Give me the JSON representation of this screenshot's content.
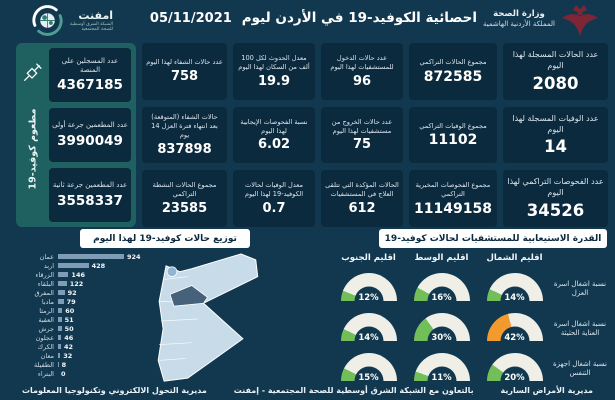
{
  "colors": {
    "background": "#12384F",
    "card": "#0C2A3D",
    "panel_teal": "#1F6061",
    "bar": "#7E9CB5",
    "gauge_green": "#72BF5A",
    "gauge_orange": "#F39A2E",
    "gauge_track": "#EFEFE8",
    "map_light": "#C7DBE9",
    "map_dark": "#45627A",
    "crest_maroon": "#7E2635"
  },
  "header": {
    "title": "احصائية الكوفيد-19 في الأردن ليوم",
    "date": "05/11/2021",
    "ministry_line1": "وزارة الصحة",
    "ministry_line2": "المملكة الأردنية الهاشمية",
    "logo_name": "امفنت",
    "logo_sub1": "الشبكة الشرق أوسطية",
    "logo_sub2": "للصحة المجتمعية"
  },
  "vaccine_panel": {
    "side_label": "مطعوم كوفيد-19",
    "cards": [
      {
        "label": "عدد المسجلين على المنصة",
        "value": "4367185"
      },
      {
        "label": "عدد المطعمين جرعة أولى",
        "value": "3990049"
      },
      {
        "label": "عدد المطعمين جرعة ثانية",
        "value": "3558337"
      }
    ]
  },
  "stat_columns": [
    {
      "id": "today",
      "size": "lg",
      "width": 105,
      "cards": [
        {
          "label": "عدد الحالات المسجلة لهذا اليوم",
          "value": "2080"
        },
        {
          "label": "عدد الوفيات المسجلة لهذا اليوم",
          "value": "14"
        },
        {
          "label": "عدد الفحوصات التراكمي لهذا اليوم",
          "value": "34526"
        }
      ]
    },
    {
      "id": "cumulative",
      "size": "md",
      "width": 88,
      "cards": [
        {
          "label": "مجموع الحالات التراكمي",
          "value": "872585"
        },
        {
          "label": "مجموع الوفيات التراكمي",
          "value": "11102"
        },
        {
          "label": "مجموع الفحوصات المخبرية التراكمي",
          "value": "11149158"
        }
      ]
    },
    {
      "id": "hospital",
      "size": "sm",
      "width": 82,
      "cards": [
        {
          "label": "عدد حالات الدخول للمستشفيات لهذا اليوم",
          "value": "96"
        },
        {
          "label": "عدد حالات الخروج من مستشفيات لهذا اليوم",
          "value": "75"
        },
        {
          "label": "الحالات المؤكدة التي تتلقى العلاج في المستشفيات",
          "value": "612"
        }
      ]
    },
    {
      "id": "rates",
      "size": "sm",
      "width": 82,
      "cards": [
        {
          "label": "معدل الحدوث لكل 100 ألف من السكان لهذا اليوم",
          "value": "19.9"
        },
        {
          "label": "نسبة الفحوصات الإيجابية لهذا اليوم",
          "value": "6.02"
        },
        {
          "label": "معدل الوفيات لحالات الكوفيد-19 لهذا اليوم",
          "value": "0.7"
        }
      ]
    },
    {
      "id": "recovery",
      "size": "sm",
      "width": 85,
      "cards": [
        {
          "label": "عدد حالات الشفاء لهذا اليوم",
          "value": "758"
        },
        {
          "label": "حالات الشفاء (المتوقعة) بعد انتهاء فترة العزل 14 يوم",
          "value": "837898"
        },
        {
          "label": "مجموع الحالات النشطة التراكمي",
          "value": "23585"
        }
      ]
    }
  ],
  "chart_data": [
    {
      "type": "bar",
      "orientation": "horizontal",
      "title": "توزيع حالات كوفيد-19 لهذا اليوم",
      "categories": [
        "عمان",
        "اربد",
        "الزرقاء",
        "البلقاء",
        "المفرق",
        "مادبا",
        "الرمثا",
        "العقبة",
        "جرش",
        "عجلون",
        "الكرك",
        "معان",
        "الطفيلة",
        "البتراء"
      ],
      "values": [
        924,
        428,
        146,
        122,
        92,
        79,
        60,
        51,
        50,
        46,
        42,
        32,
        8,
        0
      ],
      "xlim": [
        0,
        924
      ],
      "bar_color": "#7E9CB5"
    },
    {
      "type": "heatmap",
      "title": "القدرة الاستيعابية للمستشفيات لحالات كوفيد-19",
      "subtype": "gauge-grid",
      "columns": [
        "اقليم الشمال",
        "اقليم الوسط",
        "اقليم الجنوب"
      ],
      "rows": [
        {
          "label": "نسبة اشغال اسرة العزل",
          "values_pct": [
            14,
            16,
            12
          ]
        },
        {
          "label": "نسبة اشغال اسرة العناية الحثيثة",
          "values_pct": [
            42,
            30,
            14
          ]
        },
        {
          "label": "نسبة اشغال اجهزة التنفس",
          "values_pct": [
            20,
            11,
            15
          ]
        }
      ],
      "color_rule": "orange if >= 40 else green"
    }
  ],
  "footer": {
    "right": "مديرية الأمراض السارية",
    "center": "بالتعاون مع الشبكة الشرق أوسطية للصحة المجتمعية - إمفنت",
    "left": "مديرية التحول الالكتروني وتكنولوجيا المعلومات"
  }
}
